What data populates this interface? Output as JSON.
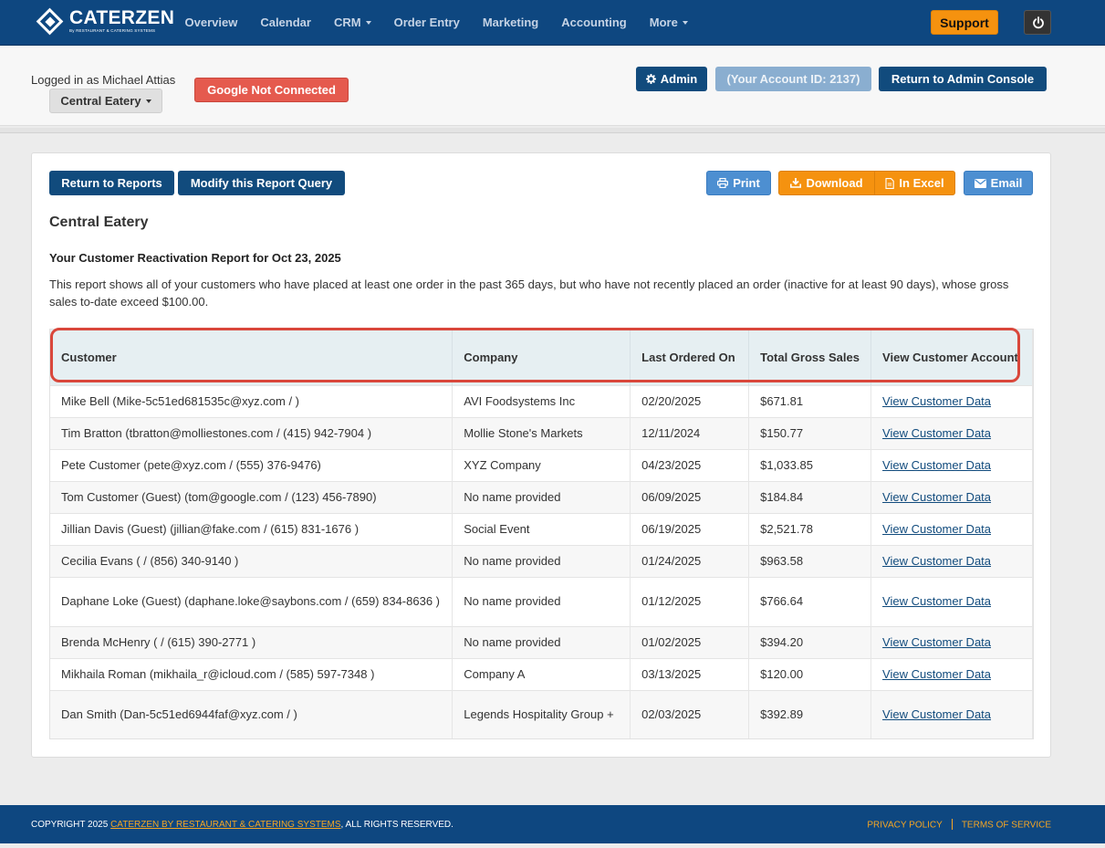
{
  "nav": {
    "brand": "CATERZEN",
    "brand_sub": "By RESTAURANT & CATERING SYSTEMS",
    "items": [
      {
        "label": "Overview",
        "has_caret": false
      },
      {
        "label": "Calendar",
        "has_caret": false
      },
      {
        "label": "CRM",
        "has_caret": true
      },
      {
        "label": "Order Entry",
        "has_caret": false
      },
      {
        "label": "Marketing",
        "has_caret": false
      },
      {
        "label": "Accounting",
        "has_caret": false
      },
      {
        "label": "More",
        "has_caret": true
      }
    ],
    "support_label": "Support",
    "power_icon": "power-icon",
    "colors": {
      "bar": "#0e4780",
      "support": "#f5920f"
    }
  },
  "header": {
    "logged_in": "Logged in as Michael Attias",
    "location": "Central Eatery",
    "google_status": "Google Not Connected",
    "admin_label": "Admin",
    "account_id": "(Your Account ID: 2137)",
    "return_console": "Return to Admin Console"
  },
  "toolbar": {
    "return_reports": "Return to Reports",
    "modify_query": "Modify this Report Query",
    "print": "Print",
    "download": "Download",
    "in_excel": "In Excel",
    "email": "Email"
  },
  "report": {
    "title": "Central Eatery",
    "subtitle": "Your Customer Reactivation Report for Oct 23, 2025",
    "description": "This report shows all of your customers who have placed at least one order in the past 365 days, but who have not recently placed an order (inactive for at least 90 days), whose gross sales to-date exceed $100.00.",
    "columns": [
      "Customer",
      "Company",
      "Last Ordered On",
      "Total Gross Sales",
      "View Customer Account"
    ],
    "rows": [
      {
        "customer": "Mike Bell (Mike-5c51ed681535c@xyz.com / )",
        "company": "AVI Foodsystems Inc",
        "last_ordered": "02/20/2025",
        "gross": "$671.81",
        "link": "View Customer Data"
      },
      {
        "customer": "Tim Bratton (tbratton@molliestones.com / (415) 942-7904 )",
        "company": "Mollie Stone's Markets",
        "last_ordered": "12/11/2024",
        "gross": "$150.77",
        "link": "View Customer Data"
      },
      {
        "customer": "Pete Customer (pete@xyz.com / (555) 376-9476)",
        "company": "XYZ Company",
        "last_ordered": "04/23/2025",
        "gross": "$1,033.85",
        "link": "View Customer Data"
      },
      {
        "customer": "Tom Customer (Guest) (tom@google.com / (123) 456-7890)",
        "company": "No name provided",
        "last_ordered": "06/09/2025",
        "gross": "$184.84",
        "link": "View Customer Data"
      },
      {
        "customer": "Jillian Davis (Guest) (jillian@fake.com / (615) 831-1676 )",
        "company": "Social Event",
        "last_ordered": "06/19/2025",
        "gross": "$2,521.78",
        "link": "View Customer Data"
      },
      {
        "customer": "Cecilia Evans ( / (856) 340-9140 )",
        "company": "No name provided",
        "last_ordered": "01/24/2025",
        "gross": "$963.58",
        "link": "View Customer Data"
      },
      {
        "customer": "Daphane Loke (Guest) (daphane.loke@saybons.com / (659) 834-8636 )",
        "company": "No name provided",
        "last_ordered": "01/12/2025",
        "gross": "$766.64",
        "link": "View Customer Data"
      },
      {
        "customer": "Brenda McHenry ( / (615) 390-2771 )",
        "company": "No name provided",
        "last_ordered": "01/02/2025",
        "gross": "$394.20",
        "link": "View Customer Data"
      },
      {
        "customer": "Mikhaila Roman (mikhaila_r@icloud.com / (585) 597-7348 )",
        "company": "Company A",
        "last_ordered": "03/13/2025",
        "gross": "$120.00",
        "link": "View Customer Data"
      },
      {
        "customer": "Dan Smith (Dan-5c51ed6944faf@xyz.com / )",
        "company": "Legends Hospitality Group +",
        "last_ordered": "02/03/2025",
        "gross": "$392.89",
        "link": "View Customer Data"
      }
    ]
  },
  "footer": {
    "copyright_prefix": "COPYRIGHT 2025 ",
    "copyright_link": "CATERZEN BY RESTAURANT & CATERING SYSTEMS",
    "copyright_suffix": ", ALL RIGHTS RESERVED.",
    "privacy": "PRIVACY POLICY",
    "terms": "TERMS OF SERVICE"
  }
}
